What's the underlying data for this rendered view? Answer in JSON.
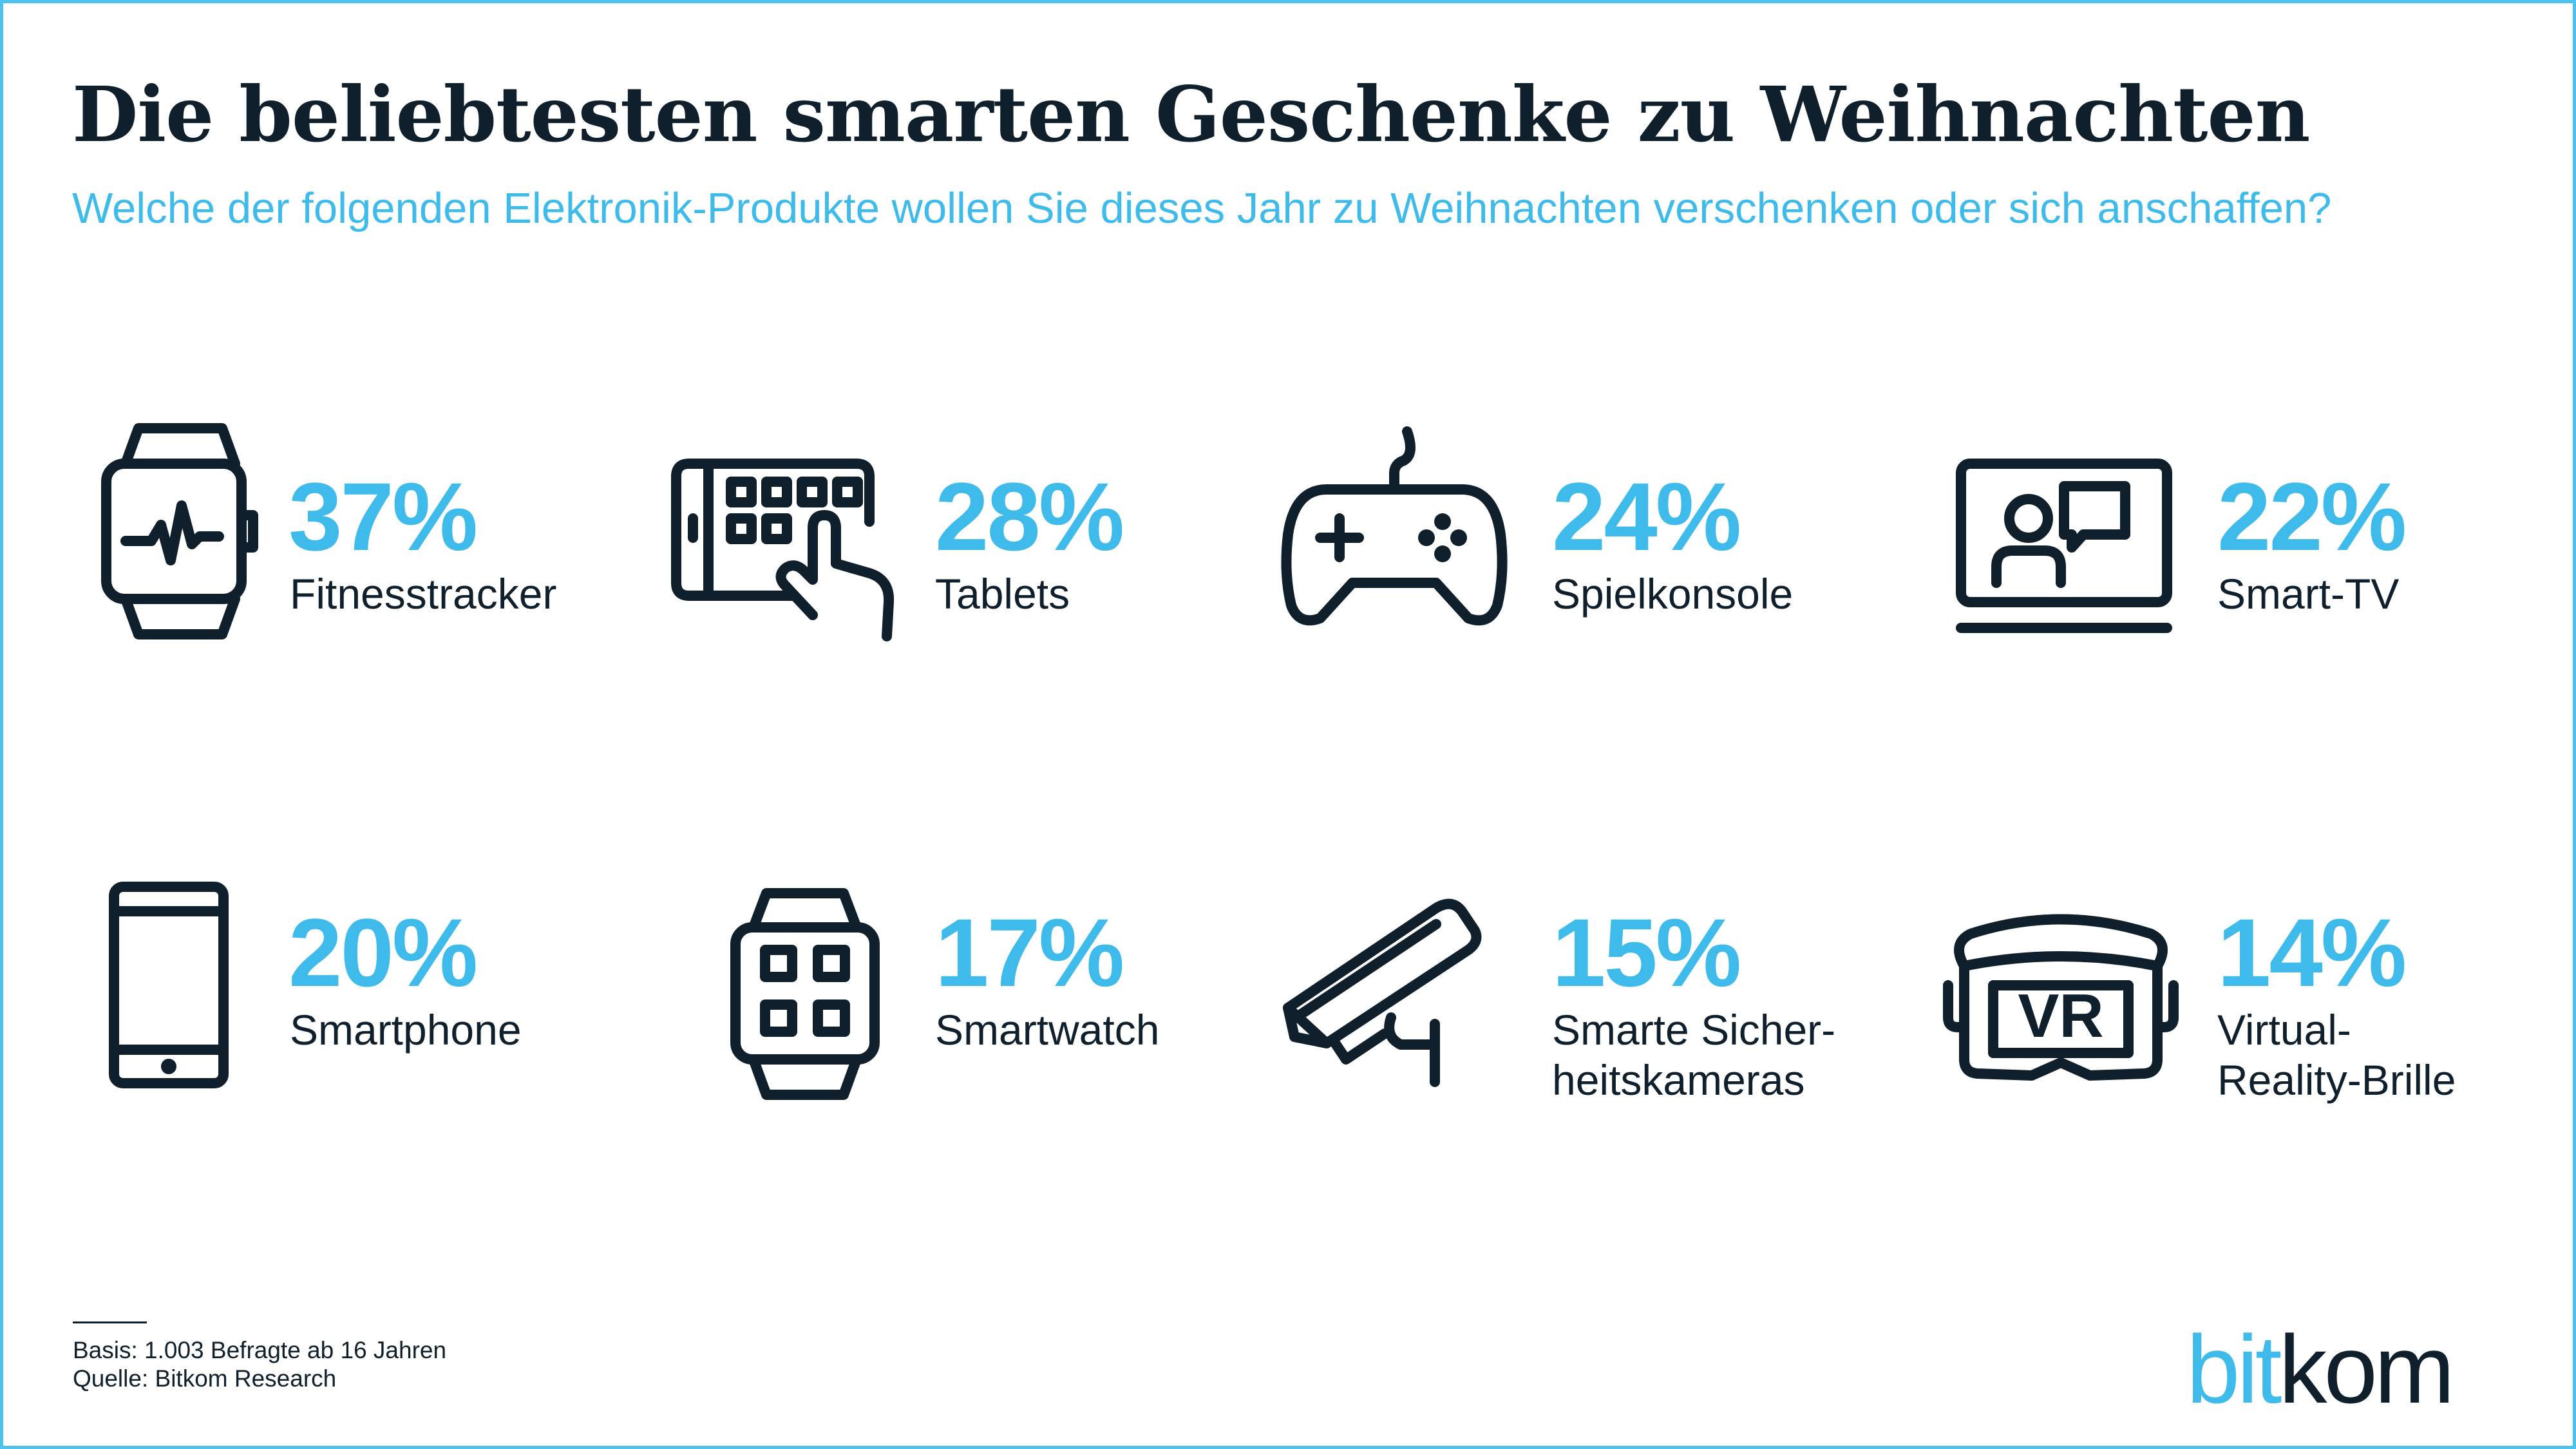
{
  "header": {
    "title": "Die beliebtesten smarten Geschenke zu Weihnachten",
    "subtitle": "Welche der folgenden Elektronik-Produkte wollen Sie dieses Jahr zu Weihnachten verschenken oder sich anschaffen?"
  },
  "chart_data": {
    "type": "table",
    "title": "Die beliebtesten smarten Geschenke zu Weihnachten",
    "subtitle": "Welche der folgenden Elektronik-Produkte wollen Sie dieses Jahr zu Weihnachten verschenken oder sich anschaffen?",
    "unit": "%",
    "categories": [
      "Fitnesstracker",
      "Tablets",
      "Spielkonsole",
      "Smart-TV",
      "Smartphone",
      "Smartwatch",
      "Smarte Sicherheitskameras",
      "Virtual-Reality-Brille"
    ],
    "values": [
      37,
      28,
      24,
      22,
      20,
      17,
      15,
      14
    ]
  },
  "items": [
    {
      "pct": "37%",
      "label": "Fitnesstracker",
      "icon": "fitness-tracker-icon"
    },
    {
      "pct": "28%",
      "label": "Tablets",
      "icon": "tablet-touch-icon"
    },
    {
      "pct": "24%",
      "label": "Spielkonsole",
      "icon": "gamepad-icon"
    },
    {
      "pct": "22%",
      "label": "Smart-TV",
      "icon": "smart-tv-icon"
    },
    {
      "pct": "20%",
      "label": "Smartphone",
      "icon": "smartphone-icon"
    },
    {
      "pct": "17%",
      "label": "Smartwatch",
      "icon": "smartwatch-icon"
    },
    {
      "pct": "15%",
      "label": "Smarte Sicher-",
      "label2": "heitskameras",
      "icon": "security-camera-icon"
    },
    {
      "pct": "14%",
      "label": "Virtual-",
      "label2": "Reality-Brille",
      "icon": "vr-headset-icon",
      "icon_text": "VR"
    }
  ],
  "footer": {
    "basis": "Basis: 1.003 Befragte ab 16 Jahren",
    "source": "Quelle: Bitkom Research",
    "brand_part1": "bit",
    "brand_part2": "kom"
  },
  "colors": {
    "accent": "#3fbbeb",
    "text": "#0f1f2b",
    "border": "#4cc3ee"
  }
}
